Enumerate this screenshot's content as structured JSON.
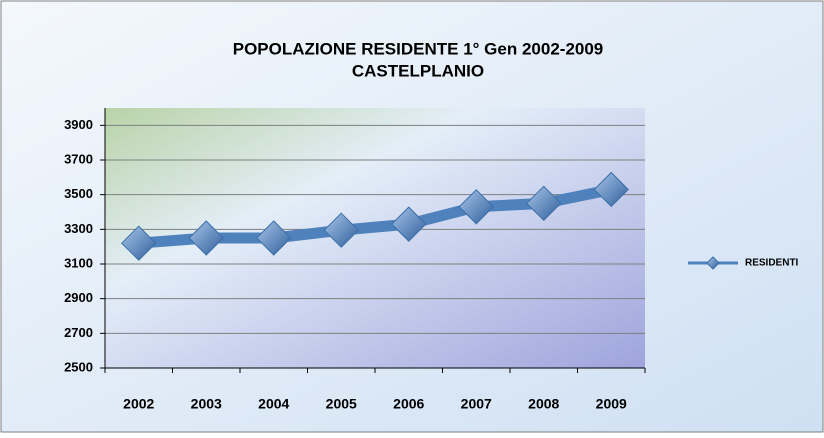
{
  "chart_data": {
    "type": "line",
    "title": "POPOLAZIONE RESIDENTE  1° Gen  2002-2009",
    "subtitle": "CASTELPLANIO",
    "categories": [
      "2002",
      "2003",
      "2004",
      "2005",
      "2006",
      "2007",
      "2008",
      "2009"
    ],
    "series": [
      {
        "name": "RESIDENTI",
        "color": "#4f81bd",
        "values": [
          3220,
          3250,
          3250,
          3295,
          3330,
          3430,
          3450,
          3530
        ]
      }
    ],
    "ylim": [
      2500,
      4000
    ],
    "yticks": [
      2500,
      2700,
      2900,
      3100,
      3300,
      3500,
      3700,
      3900
    ],
    "grid": true,
    "legend": "right"
  }
}
